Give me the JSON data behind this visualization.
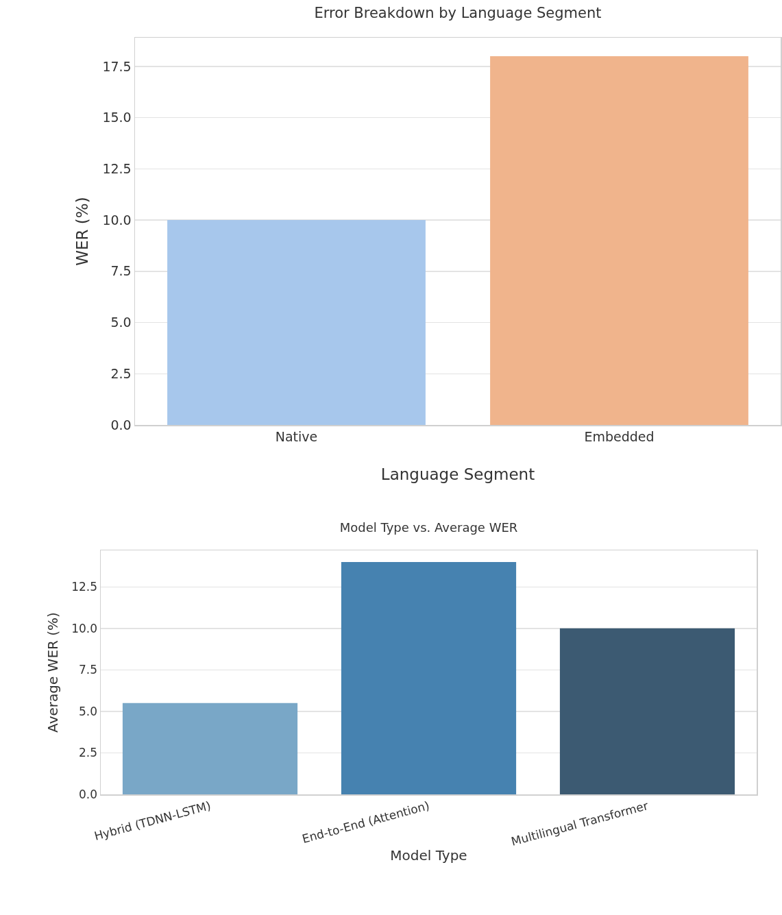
{
  "chart_data": [
    {
      "type": "bar",
      "title": "Error Breakdown by Language Segment",
      "xlabel": "Language Segment",
      "ylabel": "WER (%)",
      "categories": [
        "Native",
        "Embedded"
      ],
      "values": [
        10,
        18
      ],
      "colors": [
        "#a7c7ec",
        "#f0b48c"
      ],
      "ylim": [
        0,
        18.9
      ],
      "yticks": [
        {
          "value": 0,
          "label": "0.0"
        },
        {
          "value": 2.5,
          "label": "2.5"
        },
        {
          "value": 5,
          "label": "5.0"
        },
        {
          "value": 7.5,
          "label": "7.5"
        },
        {
          "value": 10,
          "label": "10.0"
        },
        {
          "value": 12.5,
          "label": "12.5"
        },
        {
          "value": 15,
          "label": "15.0"
        },
        {
          "value": 17.5,
          "label": "17.5"
        }
      ],
      "grid": "y"
    },
    {
      "type": "bar",
      "title": "Model Type vs. Average WER",
      "xlabel": "Model Type",
      "ylabel": "Average WER (%)",
      "categories": [
        "Hybrid (TDNN-LSTM)",
        "End-to-End (Attention)",
        "Multilingual Transformer"
      ],
      "values": [
        5.5,
        14,
        10
      ],
      "colors": [
        "#79a7c7",
        "#4682b0",
        "#3c5a72"
      ],
      "ylim": [
        0,
        14.7
      ],
      "yticks": [
        {
          "value": 0,
          "label": "0.0"
        },
        {
          "value": 2.5,
          "label": "2.5"
        },
        {
          "value": 5,
          "label": "5.0"
        },
        {
          "value": 7.5,
          "label": "7.5"
        },
        {
          "value": 10,
          "label": "10.0"
        },
        {
          "value": 12.5,
          "label": "12.5"
        }
      ],
      "grid": "y"
    }
  ]
}
